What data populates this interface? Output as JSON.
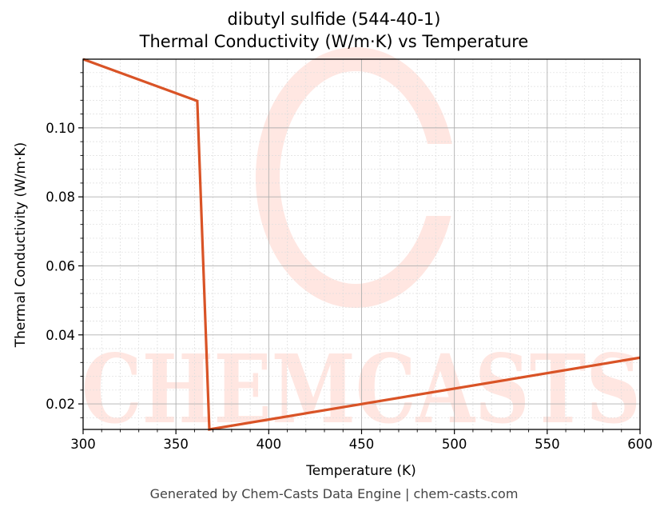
{
  "title_line1": "dibutyl sulfide (544-40-1)",
  "title_line2": "Thermal Conductivity (W/m·K) vs Temperature",
  "xlabel": "Temperature (K)",
  "ylabel": "Thermal Conductivity (W/m·K)",
  "footer": "Generated by Chem-Casts Data Engine | chem-casts.com",
  "watermark": "CHEMCASTS",
  "line_color": "#d95326",
  "x_ticks": [
    "300",
    "350",
    "400",
    "450",
    "500",
    "550",
    "600"
  ],
  "y_ticks": [
    "0.02",
    "0.04",
    "0.06",
    "0.08",
    "0.10"
  ],
  "chart_data": {
    "type": "line",
    "title": "dibutyl sulfide (544-40-1) Thermal Conductivity (W/m·K) vs Temperature",
    "xlabel": "Temperature (K)",
    "ylabel": "Thermal Conductivity (W/m·K)",
    "xlim": [
      300,
      600
    ],
    "ylim": [
      0.0126,
      0.1199
    ],
    "grid": true,
    "legend": null,
    "series": [
      {
        "name": "Thermal Conductivity",
        "x": [
          300,
          361.5,
          368,
          600
        ],
        "y": [
          0.1199,
          0.1078,
          0.0126,
          0.0334
        ]
      }
    ]
  }
}
